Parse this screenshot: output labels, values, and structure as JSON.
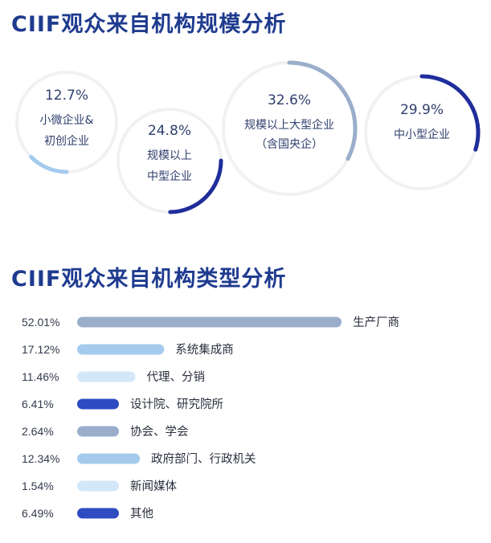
{
  "title_scale": "CIIF观众来自机构规模分析",
  "title_type": "CIIF观众来自机构类型分析",
  "chart_data": [
    {
      "type": "pie",
      "title": "CIIF观众来自机构规模分析",
      "series": [
        {
          "label_lines": [
            "小微企业&",
            "初创企业"
          ],
          "percent_text": "12.7%",
          "value": 12.7,
          "color": "#a4cbee"
        },
        {
          "label_lines": [
            "规模以上",
            "中型企业"
          ],
          "percent_text": "24.8%",
          "value": 24.8,
          "color": "#1f2e9a"
        },
        {
          "label_lines": [
            "规模以上大型企业",
            "（含国央企）"
          ],
          "percent_text": "32.6%",
          "value": 32.6,
          "color": "#9aaecb"
        },
        {
          "label_lines": [
            "中小型企业"
          ],
          "percent_text": "29.9%",
          "value": 29.9,
          "color": "#1f2e9a"
        }
      ]
    },
    {
      "type": "bar",
      "title": "CIIF观众来自机构类型分析",
      "orientation": "horizontal",
      "categories": [
        "生产厂商",
        "系统集成商",
        "代理、分销",
        "设计院、研究院所",
        "协会、学会",
        "政府部门、行政机关",
        "新闻媒体",
        "其他"
      ],
      "values": [
        52.01,
        17.12,
        11.46,
        6.41,
        2.64,
        12.34,
        1.54,
        6.49
      ],
      "value_labels": [
        "52.01%",
        "17.12%",
        "11.46%",
        "6.41%",
        "2.64%",
        "12.34%",
        "1.54%",
        "6.49%"
      ],
      "colors": [
        "#9aaecb",
        "#a4cbee",
        "#d3e7f8",
        "#2f4bc2",
        "#9aaecb",
        "#a4cbee",
        "#d3e7f8",
        "#2f4bc2"
      ]
    }
  ]
}
